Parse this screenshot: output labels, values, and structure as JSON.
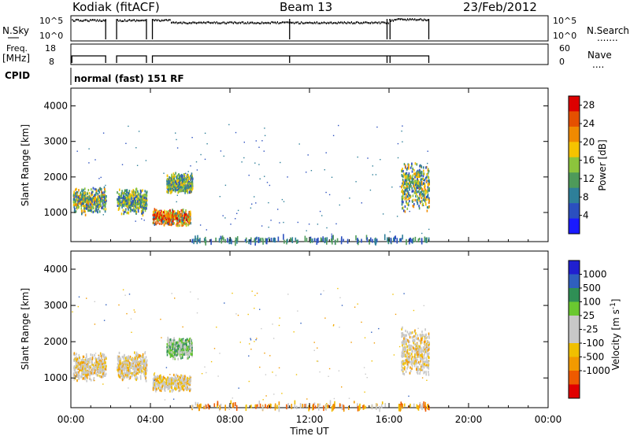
{
  "header": {
    "station": "Kodiak (fitACF)",
    "beam": "Beam 13",
    "date": "23/Feb/2012"
  },
  "noise_panel": {
    "left_label": "N.Sky",
    "left_ticks": [
      "10^5",
      "10^0"
    ],
    "right_label": "N.Search",
    "right_ticks": [
      "10^5",
      "10^0"
    ],
    "right_legend": "......."
  },
  "freq_panel": {
    "left_label_1": "Freq.",
    "left_label_2": "[MHz]",
    "left_ticks": [
      "18",
      "8"
    ],
    "right_label": "Nave",
    "right_ticks": [
      "60",
      "0"
    ],
    "right_legend": "...."
  },
  "cpid": {
    "label": "CPID",
    "value": "normal (fast) 151 RF"
  },
  "chart_data": [
    {
      "type": "heatmap",
      "title": "",
      "ylabel": "Slant Range [km]",
      "xlabel": "",
      "xlim": [
        "00:00",
        "00:00"
      ],
      "ylim": [
        180,
        4500
      ],
      "yticks": [
        "1000",
        "2000",
        "3000",
        "4000"
      ],
      "colorbar": {
        "label": "Power [dB]",
        "ticks": [
          "4",
          "8",
          "12",
          "16",
          "20",
          "24",
          "28"
        ],
        "range": [
          0,
          30
        ],
        "colors": [
          "#1a1aff",
          "#2b4fbf",
          "#2e7f99",
          "#4e9a5a",
          "#8cc43c",
          "#f5c300",
          "#f08a00",
          "#e55000",
          "#dd0000"
        ]
      },
      "regions": [
        {
          "t_start": 0.1,
          "t_end": 1.75,
          "r_min": 900,
          "r_max": 1700,
          "level": "mid-high"
        },
        {
          "t_start": 2.3,
          "t_end": 3.8,
          "r_min": 900,
          "r_max": 1700,
          "level": "mid"
        },
        {
          "t_start": 4.1,
          "t_end": 6.0,
          "r_min": 600,
          "r_max": 1100,
          "level": "high"
        },
        {
          "t_start": 4.8,
          "t_end": 6.1,
          "r_min": 1500,
          "r_max": 2100,
          "level": "mid"
        },
        {
          "t_start": 16.6,
          "t_end": 18.0,
          "r_min": 1000,
          "r_max": 2400,
          "level": "mid-high"
        },
        {
          "t_start": 6.0,
          "t_end": 18.0,
          "r_min": 180,
          "r_max": 350,
          "level": "low"
        }
      ]
    },
    {
      "type": "heatmap",
      "title": "",
      "ylabel": "Slant Range [km]",
      "xlabel": "Time UT",
      "xlim": [
        "00:00",
        "00:00"
      ],
      "ylim": [
        180,
        4500
      ],
      "yticks": [
        "1000",
        "2000",
        "3000",
        "4000"
      ],
      "xticks": [
        "00:00",
        "04:00",
        "08:00",
        "12:00",
        "16:00",
        "20:00",
        "00:00"
      ],
      "colorbar": {
        "label": "Velocity [m s^-1]",
        "ticks": [
          "1000",
          "500",
          "100",
          "25",
          "-25",
          "-100",
          "-500",
          "-1000"
        ],
        "range": [
          -1000,
          1000
        ],
        "colors": [
          "#e00000",
          "#ee5a00",
          "#f29a00",
          "#f0c000",
          "#c8c8c8",
          "#c8c8c8",
          "#6ac830",
          "#2f8f55",
          "#2f5fbf",
          "#2020d0"
        ]
      },
      "regions": [
        {
          "t_start": 0.1,
          "t_end": 1.75,
          "r_min": 900,
          "r_max": 1700,
          "level": "near-zero"
        },
        {
          "t_start": 2.3,
          "t_end": 3.8,
          "r_min": 900,
          "r_max": 1700,
          "level": "near-zero"
        },
        {
          "t_start": 4.1,
          "t_end": 6.0,
          "r_min": 600,
          "r_max": 1100,
          "level": "near-zero"
        },
        {
          "t_start": 4.8,
          "t_end": 6.1,
          "r_min": 1500,
          "r_max": 2100,
          "level": "positive"
        },
        {
          "t_start": 16.6,
          "t_end": 18.0,
          "r_min": 1000,
          "r_max": 2400,
          "level": "near-zero"
        },
        {
          "t_start": 6.0,
          "t_end": 18.0,
          "r_min": 180,
          "r_max": 350,
          "level": "negative-low"
        }
      ]
    }
  ]
}
